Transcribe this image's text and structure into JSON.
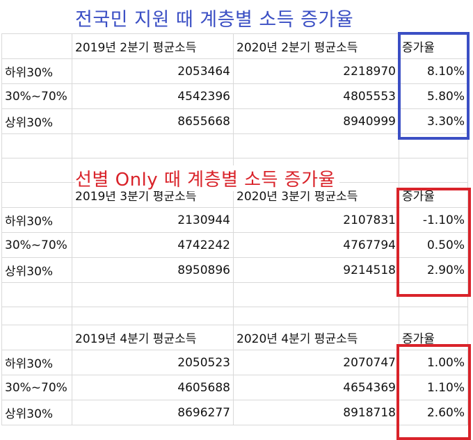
{
  "colors": {
    "blue_accent": "#3b4fc4",
    "red_accent": "#d9232a",
    "gridline": "#d9d9d9"
  },
  "title_blue": "전국민 지원 때 계층별 소득 증가율",
  "title_red": "선별 Only 때 계층별 소득 증가율",
  "tables": [
    {
      "headers": [
        "",
        "2019년 2분기 평균소득",
        "2020년 2분기 평균소득",
        "증가율"
      ],
      "rows": [
        [
          "하위30%",
          "2053464",
          "2218970",
          "8.10%"
        ],
        [
          "30%~70%",
          "4542396",
          "4805553",
          "5.80%"
        ],
        [
          "상위30%",
          "8655668",
          "8940999",
          "3.30%"
        ]
      ]
    },
    {
      "headers": [
        "",
        "2019년 3분기 평균소득",
        "2020년 3분기 평균소득",
        "증가율"
      ],
      "rows": [
        [
          "하위30%",
          "2130944",
          "2107831",
          "-1.10%"
        ],
        [
          "30%~70%",
          "4742242",
          "4767794",
          "0.50%"
        ],
        [
          "상위30%",
          "8950896",
          "9214518",
          "2.90%"
        ]
      ]
    },
    {
      "headers": [
        "",
        "2019년 4분기 평균소득",
        "2020년 4분기 평균소득",
        "증가율"
      ],
      "rows": [
        [
          "하위30%",
          "2050523",
          "2070747",
          "1.00%"
        ],
        [
          "30%~70%",
          "4605688",
          "4654369",
          "1.10%"
        ],
        [
          "상위30%",
          "8696277",
          "8918718",
          "2.60%"
        ]
      ]
    }
  ]
}
